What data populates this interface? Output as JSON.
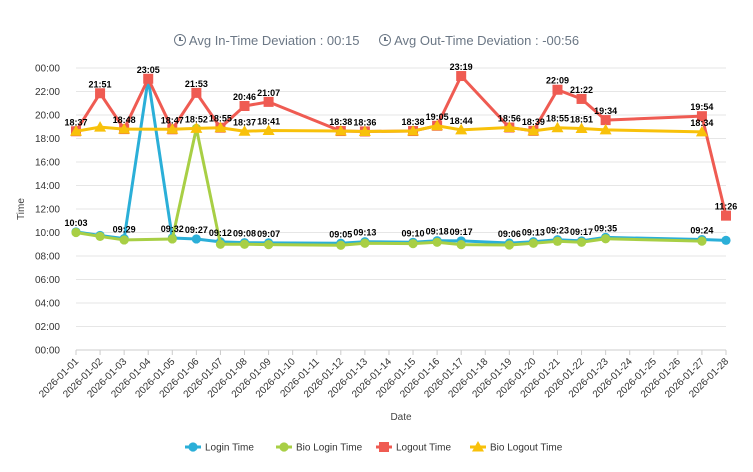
{
  "header": {
    "in_label": "Avg In-Time Deviation : 00:15",
    "out_label": "Avg Out-Time Deviation : -00:56"
  },
  "chart_data": {
    "type": "line",
    "xlabel": "Date",
    "ylabel": "Time",
    "ylim": [
      "00:00",
      "24:00"
    ],
    "y_ticks": [
      "00:00",
      "02:00",
      "04:00",
      "06:00",
      "08:00",
      "10:00",
      "12:00",
      "14:00",
      "16:00",
      "18:00",
      "20:00",
      "22:00",
      "00:00"
    ],
    "categories": [
      "2026-01-01",
      "2026-01-02",
      "2026-01-03",
      "2026-01-04",
      "2026-01-05",
      "2026-01-06",
      "2026-01-07",
      "2026-01-08",
      "2026-01-09",
      "2026-01-10",
      "2026-01-11",
      "2026-01-12",
      "2026-01-13",
      "2026-01-14",
      "2026-01-15",
      "2026-01-16",
      "2026-01-17",
      "2026-01-18",
      "2026-01-19",
      "2026-01-20",
      "2026-01-21",
      "2026-01-22",
      "2026-01-23",
      "2026-01-24",
      "2026-01-25",
      "2026-01-26",
      "2026-01-27",
      "2026-01-28"
    ],
    "series": [
      {
        "name": "Login Time",
        "color": "#2bafd8",
        "marker": "circle",
        "points": [
          [
            "2026-01-01",
            "10:03"
          ],
          [
            "2026-01-02",
            "09:45"
          ],
          [
            "2026-01-03",
            "09:29"
          ],
          [
            "2026-01-04",
            "23:05"
          ],
          [
            "2026-01-05",
            "09:32"
          ],
          [
            "2026-01-06",
            "09:27"
          ],
          [
            "2026-01-07",
            "09:12"
          ],
          [
            "2026-01-08",
            "09:08"
          ],
          [
            "2026-01-09",
            "09:07"
          ],
          [
            "2026-01-12",
            "09:05"
          ],
          [
            "2026-01-13",
            "09:13"
          ],
          [
            "2026-01-15",
            "09:10"
          ],
          [
            "2026-01-16",
            "09:18"
          ],
          [
            "2026-01-17",
            "09:17"
          ],
          [
            "2026-01-19",
            "09:06"
          ],
          [
            "2026-01-20",
            "09:13"
          ],
          [
            "2026-01-21",
            "09:23"
          ],
          [
            "2026-01-22",
            "09:17"
          ],
          [
            "2026-01-23",
            "09:35"
          ],
          [
            "2026-01-27",
            "09:24"
          ],
          [
            "2026-01-28",
            "09:20"
          ]
        ]
      },
      {
        "name": "Bio Login Time",
        "color": "#a8cf45",
        "marker": "circle",
        "points": [
          [
            "2026-01-01",
            "10:00"
          ],
          [
            "2026-01-02",
            "09:40"
          ],
          [
            "2026-01-03",
            "09:22"
          ],
          [
            "2026-01-05",
            "09:27"
          ],
          [
            "2026-01-06",
            "18:52"
          ],
          [
            "2026-01-07",
            "09:00"
          ],
          [
            "2026-01-08",
            "09:00"
          ],
          [
            "2026-01-09",
            "08:58"
          ],
          [
            "2026-01-12",
            "08:55"
          ],
          [
            "2026-01-13",
            "09:05"
          ],
          [
            "2026-01-15",
            "09:03"
          ],
          [
            "2026-01-16",
            "09:10"
          ],
          [
            "2026-01-17",
            "08:58"
          ],
          [
            "2026-01-19",
            "08:56"
          ],
          [
            "2026-01-20",
            "09:05"
          ],
          [
            "2026-01-21",
            "09:15"
          ],
          [
            "2026-01-22",
            "09:10"
          ],
          [
            "2026-01-23",
            "09:28"
          ],
          [
            "2026-01-27",
            "09:16"
          ]
        ]
      },
      {
        "name": "Logout Time",
        "color": "#ef5b52",
        "marker": "square",
        "points": [
          [
            "2026-01-01",
            "18:37"
          ],
          [
            "2026-01-02",
            "21:51"
          ],
          [
            "2026-01-03",
            "18:48"
          ],
          [
            "2026-01-04",
            "23:05"
          ],
          [
            "2026-01-05",
            "18:47"
          ],
          [
            "2026-01-06",
            "21:53"
          ],
          [
            "2026-01-07",
            "18:55"
          ],
          [
            "2026-01-08",
            "20:46"
          ],
          [
            "2026-01-09",
            "21:07"
          ],
          [
            "2026-01-12",
            "18:38"
          ],
          [
            "2026-01-13",
            "18:36"
          ],
          [
            "2026-01-15",
            "18:38"
          ],
          [
            "2026-01-16",
            "19:05"
          ],
          [
            "2026-01-17",
            "23:19"
          ],
          [
            "2026-01-19",
            "18:56"
          ],
          [
            "2026-01-20",
            "18:39"
          ],
          [
            "2026-01-21",
            "22:09"
          ],
          [
            "2026-01-22",
            "21:22"
          ],
          [
            "2026-01-23",
            "19:34"
          ],
          [
            "2026-01-27",
            "19:54"
          ],
          [
            "2026-01-28",
            "11:26"
          ]
        ]
      },
      {
        "name": "Bio Logout Time",
        "color": "#f8c10a",
        "marker": "triangle",
        "points": [
          [
            "2026-01-01",
            "18:37"
          ],
          [
            "2026-01-02",
            "18:58"
          ],
          [
            "2026-01-03",
            "18:48"
          ],
          [
            "2026-01-05",
            "18:47"
          ],
          [
            "2026-01-06",
            "18:52"
          ],
          [
            "2026-01-07",
            "18:55"
          ],
          [
            "2026-01-08",
            "18:37"
          ],
          [
            "2026-01-09",
            "18:41"
          ],
          [
            "2026-01-12",
            "18:38"
          ],
          [
            "2026-01-13",
            "18:36"
          ],
          [
            "2026-01-15",
            "18:38"
          ],
          [
            "2026-01-16",
            "19:05"
          ],
          [
            "2026-01-17",
            "18:44"
          ],
          [
            "2026-01-19",
            "18:56"
          ],
          [
            "2026-01-20",
            "18:39"
          ],
          [
            "2026-01-21",
            "18:55"
          ],
          [
            "2026-01-22",
            "18:51"
          ],
          [
            "2026-01-23",
            "18:44"
          ],
          [
            "2026-01-27",
            "18:34"
          ]
        ]
      }
    ],
    "data_labels": [
      {
        "text": "10:03",
        "date": "2026-01-01",
        "time": "10:03"
      },
      {
        "text": "09:29",
        "date": "2026-01-03",
        "time": "09:29"
      },
      {
        "text": "09:32",
        "date": "2026-01-05",
        "time": "09:32"
      },
      {
        "text": "09:27",
        "date": "2026-01-06",
        "time": "09:27"
      },
      {
        "text": "09:12",
        "date": "2026-01-07",
        "time": "09:12"
      },
      {
        "text": "09:08",
        "date": "2026-01-08",
        "time": "09:08"
      },
      {
        "text": "09:07",
        "date": "2026-01-09",
        "time": "09:07"
      },
      {
        "text": "09:05",
        "date": "2026-01-12",
        "time": "09:05"
      },
      {
        "text": "09:13",
        "date": "2026-01-13",
        "time": "09:13"
      },
      {
        "text": "09:10",
        "date": "2026-01-15",
        "time": "09:10"
      },
      {
        "text": "09:18",
        "date": "2026-01-16",
        "time": "09:18"
      },
      {
        "text": "09:17",
        "date": "2026-01-17",
        "time": "09:17"
      },
      {
        "text": "09:06",
        "date": "2026-01-19",
        "time": "09:06"
      },
      {
        "text": "09:13",
        "date": "2026-01-20",
        "time": "09:13"
      },
      {
        "text": "09:23",
        "date": "2026-01-21",
        "time": "09:23"
      },
      {
        "text": "09:17",
        "date": "2026-01-22",
        "time": "09:17"
      },
      {
        "text": "09:35",
        "date": "2026-01-23",
        "time": "09:35"
      },
      {
        "text": "09:24",
        "date": "2026-01-27",
        "time": "09:24"
      },
      {
        "text": "18:37",
        "date": "2026-01-01",
        "time": "18:37"
      },
      {
        "text": "21:51",
        "date": "2026-01-02",
        "time": "21:51"
      },
      {
        "text": "18:48",
        "date": "2026-01-03",
        "time": "18:48"
      },
      {
        "text": "23:05",
        "date": "2026-01-04",
        "time": "23:05"
      },
      {
        "text": "18:47",
        "date": "2026-01-05",
        "time": "18:47"
      },
      {
        "text": "21:53",
        "date": "2026-01-06",
        "time": "21:53"
      },
      {
        "text": "18:52",
        "date": "2026-01-06",
        "time": "18:52"
      },
      {
        "text": "18:55",
        "date": "2026-01-07",
        "time": "18:55"
      },
      {
        "text": "20:46",
        "date": "2026-01-08",
        "time": "20:46"
      },
      {
        "text": "18:37",
        "date": "2026-01-08",
        "time": "18:37"
      },
      {
        "text": "21:07",
        "date": "2026-01-09",
        "time": "21:07"
      },
      {
        "text": "18:41",
        "date": "2026-01-09",
        "time": "18:41"
      },
      {
        "text": "18:38",
        "date": "2026-01-12",
        "time": "18:38"
      },
      {
        "text": "18:36",
        "date": "2026-01-13",
        "time": "18:36"
      },
      {
        "text": "18:38",
        "date": "2026-01-15",
        "time": "18:38"
      },
      {
        "text": "19:05",
        "date": "2026-01-16",
        "time": "19:05"
      },
      {
        "text": "23:19",
        "date": "2026-01-17",
        "time": "23:19"
      },
      {
        "text": "18:44",
        "date": "2026-01-17",
        "time": "18:44"
      },
      {
        "text": "18:56",
        "date": "2026-01-19",
        "time": "18:56"
      },
      {
        "text": "18:39",
        "date": "2026-01-20",
        "time": "18:39"
      },
      {
        "text": "22:09",
        "date": "2026-01-21",
        "time": "22:09"
      },
      {
        "text": "18:55",
        "date": "2026-01-21",
        "time": "18:55"
      },
      {
        "text": "21:22",
        "date": "2026-01-22",
        "time": "21:22"
      },
      {
        "text": "18:51",
        "date": "2026-01-22",
        "time": "18:51"
      },
      {
        "text": "19:34",
        "date": "2026-01-23",
        "time": "19:34"
      },
      {
        "text": "19:54",
        "date": "2026-01-27",
        "time": "19:54"
      },
      {
        "text": "18:34",
        "date": "2026-01-27",
        "time": "18:34"
      },
      {
        "text": "11:26",
        "date": "2026-01-28",
        "time": "11:26"
      }
    ],
    "legend_position": "bottom-center",
    "grid": true
  }
}
